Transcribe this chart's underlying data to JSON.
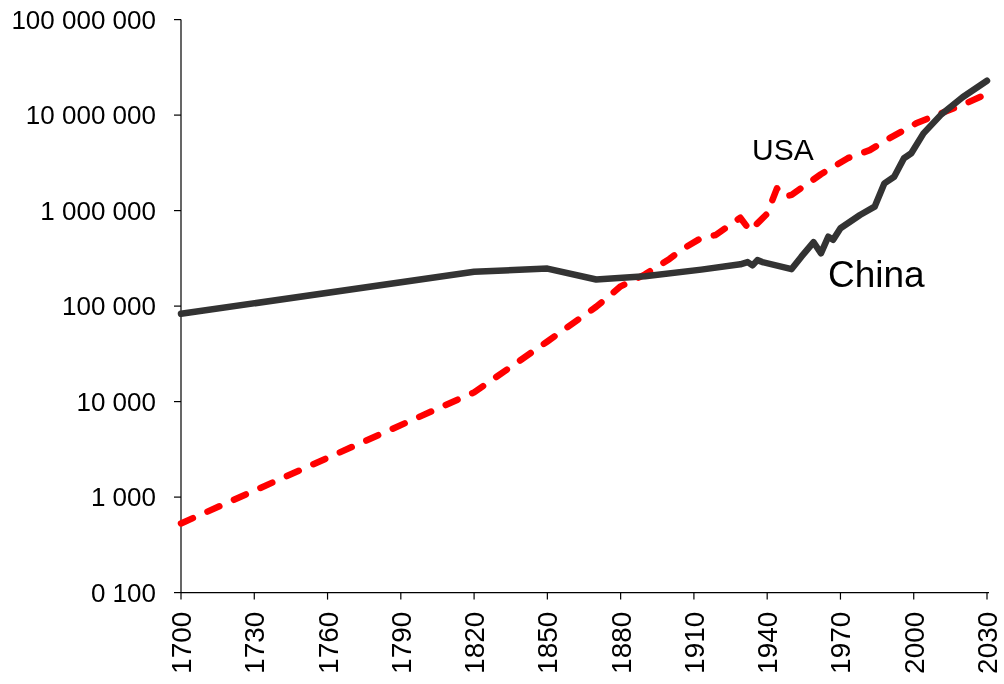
{
  "chart_data": {
    "type": "line",
    "log": true,
    "xlim": [
      1700,
      2030
    ],
    "xticks": [
      1700,
      1730,
      1760,
      1790,
      1820,
      1850,
      1880,
      1910,
      1940,
      1970,
      2000,
      2030
    ],
    "ylim": [
      100,
      100000000
    ],
    "yticks": [
      {
        "value": 100,
        "label": "0 100"
      },
      {
        "value": 1000,
        "label": "1 000"
      },
      {
        "value": 10000,
        "label": "10 000"
      },
      {
        "value": 100000,
        "label": "100 000"
      },
      {
        "value": 1000000,
        "label": "1 000 000"
      },
      {
        "value": 10000000,
        "label": "10 000 000"
      },
      {
        "value": 100000000,
        "label": "100 000 000"
      }
    ],
    "series": [
      {
        "name": "USA",
        "color": "#ff0000",
        "line_style": "dashed",
        "x": [
          1700,
          1820,
          1850,
          1870,
          1880,
          1890,
          1900,
          1905,
          1913,
          1919,
          1929,
          1933,
          1940,
          1944,
          1947,
          1950,
          1955,
          1962,
          1973,
          1982,
          1990,
          2001,
          2011,
          2020,
          2030
        ],
        "values": [
          530,
          12500,
          42600,
          98400,
          161000,
          215000,
          312000,
          390000,
          517000,
          556000,
          843000,
          616000,
          930000,
          1710000,
          1400000,
          1460000,
          1800000,
          2400000,
          3540000,
          4300000,
          5710000,
          8200000,
          10400000,
          12800000,
          16700000
        ]
      },
      {
        "name": "China",
        "color": "#333333",
        "line_style": "solid",
        "x": [
          1700,
          1820,
          1850,
          1870,
          1890,
          1913,
          1929,
          1932,
          1934,
          1936,
          1938,
          1950,
          1954,
          1959,
          1962,
          1965,
          1967,
          1970,
          1978,
          1984,
          1988,
          1992,
          1996,
          1999,
          2004,
          2011,
          2020,
          2030
        ],
        "values": [
          83000,
          229000,
          247000,
          190000,
          205000,
          241000,
          274000,
          289000,
          267000,
          303000,
          289000,
          244000,
          329000,
          467000,
          357000,
          533000,
          494000,
          653000,
          900000,
          1100000,
          1930000,
          2260000,
          3530000,
          3980000,
          6440000,
          10000000,
          15400000,
          22900000
        ]
      }
    ]
  }
}
